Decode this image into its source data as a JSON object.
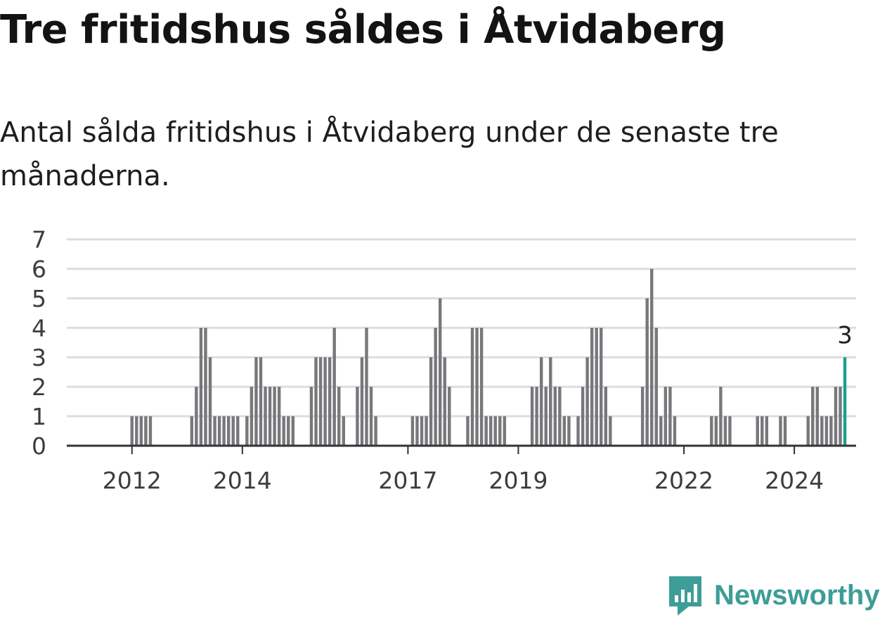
{
  "header": {
    "title": "Tre fritidshus såldes i Åtvidaberg",
    "subtitle": "Antal sålda fritidshus i Åtvidaberg under de senaste tre månaderna."
  },
  "chart_data": {
    "type": "bar",
    "unit": "month",
    "start": "2011-07",
    "values": [
      0,
      0,
      0,
      0,
      0,
      0,
      0,
      0,
      0,
      0,
      0,
      0,
      1,
      1,
      1,
      1,
      1,
      0,
      0,
      0,
      0,
      0,
      0,
      0,
      0,
      1,
      2,
      4,
      4,
      3,
      1,
      1,
      1,
      1,
      1,
      1,
      0,
      1,
      2,
      3,
      3,
      2,
      2,
      2,
      2,
      1,
      1,
      1,
      0,
      0,
      0,
      2,
      3,
      3,
      3,
      3,
      4,
      2,
      1,
      0,
      0,
      2,
      3,
      4,
      2,
      1,
      0,
      0,
      0,
      0,
      0,
      0,
      0,
      1,
      1,
      1,
      1,
      3,
      4,
      5,
      3,
      2,
      0,
      0,
      0,
      1,
      4,
      4,
      4,
      1,
      1,
      1,
      1,
      1,
      0,
      0,
      0,
      0,
      0,
      2,
      2,
      3,
      2,
      3,
      2,
      2,
      1,
      1,
      0,
      1,
      2,
      3,
      4,
      4,
      4,
      2,
      1,
      0,
      0,
      0,
      0,
      0,
      0,
      2,
      5,
      6,
      4,
      1,
      2,
      2,
      1,
      0,
      0,
      0,
      0,
      0,
      0,
      0,
      1,
      1,
      2,
      1,
      1,
      0,
      0,
      0,
      0,
      0,
      1,
      1,
      1,
      0,
      0,
      1,
      1,
      0,
      0,
      0,
      0,
      1,
      2,
      2,
      1,
      1,
      1,
      2,
      2,
      3
    ],
    "xticks": [
      "2012",
      "2014",
      "2017",
      "2019",
      "2022",
      "2024"
    ],
    "yticks": [
      "0",
      "1",
      "2",
      "3",
      "4",
      "5",
      "6",
      "7"
    ],
    "ylim": [
      0,
      7
    ],
    "highlight_label": "3",
    "grid": true,
    "colors": {
      "bar": "#78777b",
      "highlight": "#1d9d91",
      "grid": "#dcdcdc",
      "axis": "#333333"
    }
  },
  "branding": {
    "name": "Newsworthy",
    "icon": "newsworthy-logo-icon",
    "color": "#3d9d97"
  }
}
